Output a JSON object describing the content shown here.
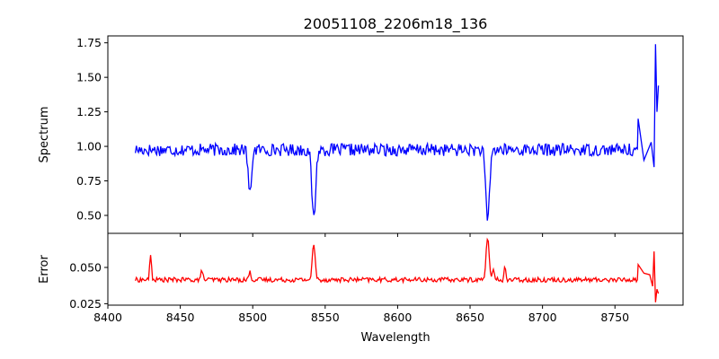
{
  "chart_data": {
    "type": "line",
    "title": "20051108_2206m18_136",
    "xlabel": "Wavelength",
    "x_ticks": [
      8400,
      8450,
      8500,
      8550,
      8600,
      8650,
      8700,
      8750
    ],
    "xlim": [
      8400,
      8797
    ],
    "panels": [
      {
        "ylabel": "Spectrum",
        "ylim": [
          0.37,
          1.8
        ],
        "y_ticks": [
          0.5,
          0.75,
          1.0,
          1.25,
          1.5,
          1.75
        ],
        "y_tick_labels": [
          "0.50",
          "0.75",
          "1.00",
          "1.25",
          "1.50",
          "1.75"
        ],
        "color": "#0000ff",
        "x_range": [
          8419,
          8780
        ],
        "continuum": 0.975,
        "noise": 0.045,
        "lines": [
          {
            "center": 8498.0,
            "depth": 0.33,
            "width": 1.1
          },
          {
            "center": 8542.1,
            "depth": 0.5,
            "width": 1.3
          },
          {
            "center": 8662.1,
            "depth": 0.52,
            "width": 1.3
          }
        ],
        "tail": [
          [
            8766,
            1.2
          ],
          [
            8770,
            0.9
          ],
          [
            8775,
            1.03
          ],
          [
            8777,
            0.85
          ],
          [
            8778,
            1.74
          ],
          [
            8779,
            1.25
          ],
          [
            8780,
            1.44
          ]
        ]
      },
      {
        "ylabel": "Error",
        "ylim": [
          0.024,
          0.0735
        ],
        "y_ticks": [
          0.025,
          0.05
        ],
        "y_tick_labels": [
          "0.025",
          "0.050"
        ],
        "color": "#ff0000",
        "x_range": [
          8419,
          8780
        ],
        "continuum": 0.0415,
        "noise": 0.0016,
        "lines": [
          {
            "center": 8429.5,
            "depth": -0.017,
            "width": 0.6
          },
          {
            "center": 8465.0,
            "depth": -0.007,
            "width": 0.6
          },
          {
            "center": 8498.0,
            "depth": -0.005,
            "width": 0.8
          },
          {
            "center": 8542.1,
            "depth": -0.024,
            "width": 1.0
          },
          {
            "center": 8662.1,
            "depth": -0.03,
            "width": 1.0
          },
          {
            "center": 8666.0,
            "depth": -0.006,
            "width": 0.8
          },
          {
            "center": 8674.0,
            "depth": -0.01,
            "width": 0.5
          }
        ],
        "tail": [
          [
            8766,
            0.052
          ],
          [
            8770,
            0.046
          ],
          [
            8774,
            0.045
          ],
          [
            8776,
            0.037
          ],
          [
            8777,
            0.061
          ],
          [
            8778,
            0.026
          ],
          [
            8779,
            0.035
          ],
          [
            8780,
            0.032
          ]
        ]
      }
    ]
  }
}
